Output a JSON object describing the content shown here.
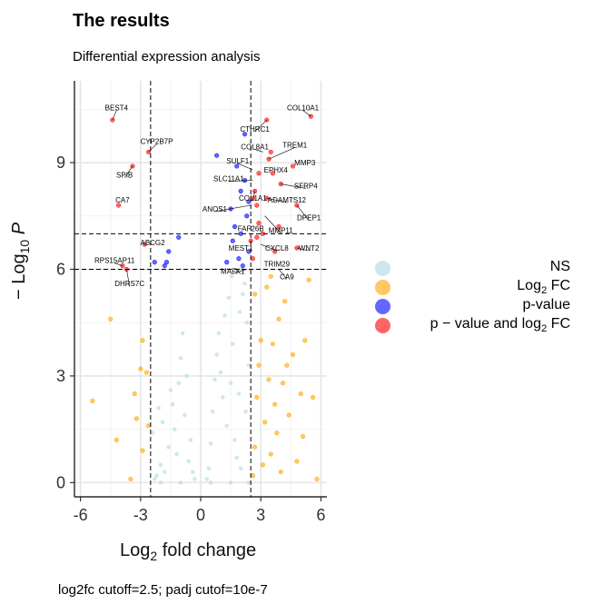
{
  "chart_data": {
    "type": "scatter",
    "title": "The results",
    "subtitle": "Differential expression analysis",
    "xlabel_main": "Log",
    "xlabel_sub": "2",
    "xlabel_rest": " fold change",
    "ylabel_pre": "− Log",
    "ylabel_sub": "10",
    "ylabel_rest": " P",
    "caption": "log2fc cutoff=2.5; padj cutof=10e-7",
    "xlim": [
      -6.3,
      6.3
    ],
    "ylim": [
      -0.4,
      11.3
    ],
    "x_ticks": [
      -6,
      -3,
      0,
      3,
      6
    ],
    "x_tick_labels": [
      "-6",
      "-3",
      "0",
      "3",
      "6"
    ],
    "y_ticks": [
      0,
      3,
      6,
      9
    ],
    "y_tick_labels": [
      "0",
      "3",
      "6",
      "9"
    ],
    "grid": true,
    "legend_position": "right",
    "cutoffs": {
      "log2fc": [
        -2.5,
        2.5
      ],
      "neg_log10_p": [
        6,
        7
      ]
    },
    "legend": [
      {
        "label": "NS",
        "color": "#add8e6"
      },
      {
        "label_main": "Log",
        "label_sub": "2",
        "label_rest": " FC",
        "color": "#ffa500"
      },
      {
        "label": "p-value",
        "color": "#0000ff"
      },
      {
        "label_main": "p − value and log",
        "label_sub": "2",
        "label_rest": " FC",
        "color": "#ff0000"
      }
    ],
    "series": [
      {
        "name": "NS",
        "color": "#add8e6",
        "points": [
          [
            -2.3,
            0.1
          ],
          [
            -2.2,
            0.2
          ],
          [
            -2.0,
            0.5
          ],
          [
            -1.8,
            0.3
          ],
          [
            -1.6,
            1.0
          ],
          [
            -1.4,
            2.2
          ],
          [
            -1.3,
            1.5
          ],
          [
            -1.2,
            0.8
          ],
          [
            -1.1,
            2.8
          ],
          [
            -1.0,
            3.5
          ],
          [
            -0.9,
            4.2
          ],
          [
            -0.8,
            1.9
          ],
          [
            -0.7,
            3.0
          ],
          [
            -0.6,
            0.6
          ],
          [
            -0.5,
            1.2
          ],
          [
            -0.4,
            0.3
          ],
          [
            -0.3,
            0.1
          ],
          [
            -1.5,
            2.6
          ],
          [
            -1.9,
            1.7
          ],
          [
            -2.1,
            2.1
          ],
          [
            -2.4,
            1.4
          ],
          [
            0.3,
            0.1
          ],
          [
            0.4,
            0.4
          ],
          [
            0.5,
            1.1
          ],
          [
            0.6,
            2.0
          ],
          [
            0.7,
            2.9
          ],
          [
            0.8,
            3.6
          ],
          [
            0.9,
            4.2
          ],
          [
            1.0,
            3.1
          ],
          [
            1.1,
            2.4
          ],
          [
            1.2,
            4.7
          ],
          [
            1.3,
            1.6
          ],
          [
            1.4,
            5.2
          ],
          [
            1.5,
            2.8
          ],
          [
            1.6,
            3.9
          ],
          [
            1.7,
            1.2
          ],
          [
            1.8,
            0.7
          ],
          [
            1.9,
            2.5
          ],
          [
            2.0,
            0.4
          ],
          [
            2.1,
            5.3
          ],
          [
            2.2,
            5.6
          ],
          [
            2.3,
            4.5
          ],
          [
            2.4,
            3.3
          ],
          [
            1.55,
            5.8
          ],
          [
            1.95,
            4.8
          ],
          [
            2.25,
            2.0
          ],
          [
            -2.0,
            0.0
          ],
          [
            -1.0,
            0.0
          ],
          [
            0.5,
            0.0
          ],
          [
            1.5,
            0.0
          ],
          [
            2.4,
            0.0
          ]
        ]
      },
      {
        "name": "Log2 FC",
        "color": "#ffa500",
        "points": [
          [
            -4.5,
            4.6
          ],
          [
            -5.4,
            2.3
          ],
          [
            -4.2,
            1.2
          ],
          [
            -3.5,
            0.1
          ],
          [
            -3.3,
            2.5
          ],
          [
            -3.0,
            3.2
          ],
          [
            -2.9,
            0.9
          ],
          [
            -2.7,
            3.1
          ],
          [
            -2.6,
            1.6
          ],
          [
            -2.9,
            4.0
          ],
          [
            -3.2,
            1.8
          ],
          [
            2.6,
            0.2
          ],
          [
            2.7,
            1.0
          ],
          [
            2.8,
            2.4
          ],
          [
            2.9,
            3.3
          ],
          [
            3.0,
            4.0
          ],
          [
            3.1,
            0.5
          ],
          [
            3.2,
            1.7
          ],
          [
            3.3,
            5.5
          ],
          [
            3.4,
            2.9
          ],
          [
            3.5,
            0.8
          ],
          [
            3.6,
            3.9
          ],
          [
            3.7,
            2.2
          ],
          [
            3.8,
            1.4
          ],
          [
            3.9,
            4.6
          ],
          [
            4.0,
            0.3
          ],
          [
            4.1,
            2.8
          ],
          [
            4.2,
            5.1
          ],
          [
            4.4,
            1.9
          ],
          [
            4.6,
            3.6
          ],
          [
            4.8,
            0.6
          ],
          [
            5.0,
            2.5
          ],
          [
            5.2,
            4.0
          ],
          [
            5.4,
            5.7
          ],
          [
            5.6,
            2.4
          ],
          [
            5.8,
            0.1
          ],
          [
            2.7,
            5.3
          ],
          [
            3.5,
            5.8
          ],
          [
            4.3,
            3.3
          ],
          [
            5.1,
            1.3
          ]
        ]
      },
      {
        "name": "p-value",
        "color": "#0000ff",
        "points": [
          [
            -1.1,
            6.9
          ],
          [
            -1.6,
            6.5
          ],
          [
            -1.8,
            6.1
          ],
          [
            -1.7,
            6.2
          ],
          [
            -2.3,
            6.2
          ],
          [
            0.8,
            9.2
          ],
          [
            2.2,
            9.8
          ],
          [
            2.0,
            8.2
          ],
          [
            1.8,
            8.9
          ],
          [
            2.3,
            7.5
          ],
          [
            2.0,
            7.0
          ],
          [
            1.6,
            6.8
          ],
          [
            2.4,
            6.5
          ],
          [
            2.1,
            6.1
          ],
          [
            1.9,
            6.3
          ],
          [
            1.3,
            6.2
          ],
          [
            1.5,
            7.7
          ],
          [
            2.2,
            8.5
          ],
          [
            2.4,
            7.9
          ],
          [
            1.7,
            7.2
          ]
        ]
      },
      {
        "name": "p - value and log2 FC",
        "color": "#ff0000",
        "points": [
          [
            -4.4,
            10.2
          ],
          [
            -2.6,
            9.3
          ],
          [
            -3.4,
            8.9
          ],
          [
            -4.1,
            7.8
          ],
          [
            -3.9,
            6.1
          ],
          [
            -3.7,
            6.0
          ],
          [
            -2.8,
            6.7
          ],
          [
            2.6,
            8.0
          ],
          [
            2.8,
            7.8
          ],
          [
            2.7,
            8.2
          ],
          [
            2.9,
            7.3
          ],
          [
            2.5,
            6.8
          ],
          [
            2.8,
            6.9
          ],
          [
            2.6,
            6.3
          ],
          [
            3.4,
            9.1
          ],
          [
            3.6,
            8.7
          ],
          [
            3.3,
            10.2
          ],
          [
            3.5,
            9.3
          ],
          [
            4.0,
            8.4
          ],
          [
            4.8,
            7.8
          ],
          [
            4.6,
            8.9
          ],
          [
            4.8,
            6.6
          ],
          [
            3.7,
            6.5
          ],
          [
            5.5,
            10.3
          ],
          [
            3.9,
            7.2
          ],
          [
            3.1,
            7.0
          ],
          [
            2.9,
            8.7
          ],
          [
            3.3,
            8.0
          ]
        ]
      }
    ],
    "labels": [
      {
        "text": "BEST4",
        "x": -4.4,
        "y": 10.2,
        "lx": -4.2,
        "ly": 10.55,
        "size": 8
      },
      {
        "text": "COL10A1",
        "x": 5.5,
        "y": 10.3,
        "lx": 5.1,
        "ly": 10.55,
        "size": 8
      },
      {
        "text": "CTHRC1",
        "x": 3.3,
        "y": 10.2,
        "lx": 2.7,
        "ly": 9.95,
        "size": 8
      },
      {
        "text": "CYP2B7P",
        "x": -2.6,
        "y": 9.3,
        "lx": -2.2,
        "ly": 9.6,
        "size": 8
      },
      {
        "text": "TREM1",
        "x": 3.4,
        "y": 9.1,
        "lx": 4.7,
        "ly": 9.5,
        "size": 8
      },
      {
        "text": "COL8A1",
        "x": 3.1,
        "y": 9.3,
        "lx": 2.7,
        "ly": 9.45,
        "size": 8
      },
      {
        "text": "SULF1",
        "x": 2.6,
        "y": 8.8,
        "lx": 1.85,
        "ly": 9.05,
        "size": 8
      },
      {
        "text": "MMP3",
        "x": 5.2,
        "y": 8.9,
        "lx": 5.2,
        "ly": 9.0,
        "size": 8
      },
      {
        "text": "SPIB",
        "x": -3.4,
        "y": 8.9,
        "lx": -3.8,
        "ly": 8.65,
        "size": 8
      },
      {
        "text": "EPHX4",
        "x": 3.6,
        "y": 8.7,
        "lx": 3.75,
        "ly": 8.8,
        "size": 8
      },
      {
        "text": "SLC11A1",
        "x": 2.6,
        "y": 8.5,
        "lx": 1.4,
        "ly": 8.55,
        "size": 8
      },
      {
        "text": "SFRP4",
        "x": 4.0,
        "y": 8.4,
        "lx": 5.25,
        "ly": 8.35,
        "size": 8
      },
      {
        "text": "COL1A1",
        "x": 2.7,
        "y": 8.2,
        "lx": 2.6,
        "ly": 8.0,
        "size": 8
      },
      {
        "text": "ADAMTS12",
        "x": 3.3,
        "y": 8.0,
        "lx": 4.3,
        "ly": 7.95,
        "size": 8
      },
      {
        "text": "CA7",
        "x": -4.1,
        "y": 7.8,
        "lx": -3.9,
        "ly": 7.95,
        "size": 8
      },
      {
        "text": "ANOS1",
        "x": 2.5,
        "y": 7.8,
        "lx": 0.7,
        "ly": 7.7,
        "size": 8
      },
      {
        "text": "DPEP1",
        "x": 4.8,
        "y": 7.8,
        "lx": 5.4,
        "ly": 7.45,
        "size": 8
      },
      {
        "text": "FAF26B",
        "x": 2.5,
        "y": 7.3,
        "lx": 2.5,
        "ly": 7.15,
        "size": 8
      },
      {
        "text": "MMP11",
        "x": 3.2,
        "y": 7.5,
        "lx": 4.0,
        "ly": 7.1,
        "size": 8
      },
      {
        "text": "ABCG2",
        "x": -2.6,
        "y": 6.7,
        "lx": -2.4,
        "ly": 6.75,
        "size": 8
      },
      {
        "text": "MEST1",
        "x": 2.3,
        "y": 6.6,
        "lx": 2.0,
        "ly": 6.6,
        "size": 8
      },
      {
        "text": "CXCL8",
        "x": 3.0,
        "y": 6.7,
        "lx": 3.8,
        "ly": 6.6,
        "size": 8
      },
      {
        "text": "WNT2",
        "x": 4.8,
        "y": 6.6,
        "lx": 5.4,
        "ly": 6.6,
        "size": 8
      },
      {
        "text": "TRIM29",
        "x": 3.7,
        "y": 6.3,
        "lx": 3.8,
        "ly": 6.15,
        "size": 8
      },
      {
        "text": "RPS15AP11",
        "x": -3.9,
        "y": 6.1,
        "lx": -4.3,
        "ly": 6.25,
        "size": 8
      },
      {
        "text": "MAFK1",
        "x": 2.3,
        "y": 6.0,
        "lx": 1.6,
        "ly": 5.95,
        "size": 8
      },
      {
        "text": "DHRS7C",
        "x": -3.7,
        "y": 6.0,
        "lx": -3.55,
        "ly": 5.6,
        "size": 8
      },
      {
        "text": "CA9",
        "x": 3.9,
        "y": 6.0,
        "lx": 4.3,
        "ly": 5.8,
        "size": 8
      }
    ]
  }
}
